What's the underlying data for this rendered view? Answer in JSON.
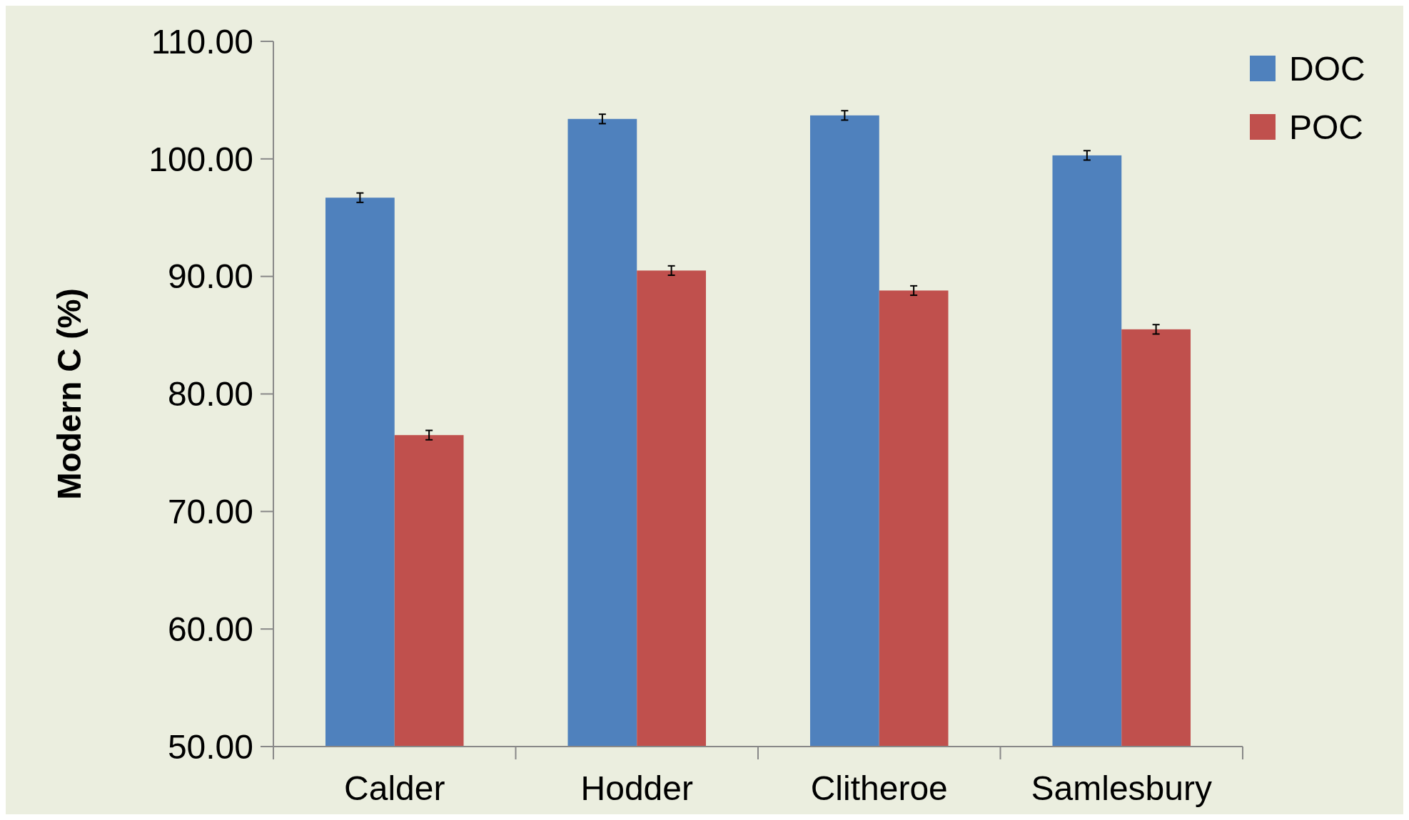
{
  "chart_data": {
    "type": "bar",
    "ylabel": "Modern C (%)",
    "categories": [
      "Calder",
      "Hodder",
      "Clitheroe",
      "Samlesbury"
    ],
    "series": [
      {
        "name": "DOC",
        "color": "#4f81bd",
        "values": [
          96.7,
          103.4,
          103.7,
          100.3
        ],
        "errors": [
          0.4,
          0.4,
          0.4,
          0.4
        ]
      },
      {
        "name": "POC",
        "color": "#c0504d",
        "values": [
          76.5,
          90.5,
          88.8,
          85.5
        ],
        "errors": [
          0.4,
          0.4,
          0.4,
          0.4
        ]
      }
    ],
    "ylim": [
      50,
      110
    ],
    "yticks": [
      {
        "value": 50,
        "label": "50.00"
      },
      {
        "value": 60,
        "label": "60.00"
      },
      {
        "value": 70,
        "label": "70.00"
      },
      {
        "value": 80,
        "label": "80.00"
      },
      {
        "value": 90,
        "label": "90.00"
      },
      {
        "value": 100,
        "label": "100.00"
      },
      {
        "value": 110,
        "label": "110.00"
      }
    ],
    "grid": false,
    "legend": "top right"
  }
}
